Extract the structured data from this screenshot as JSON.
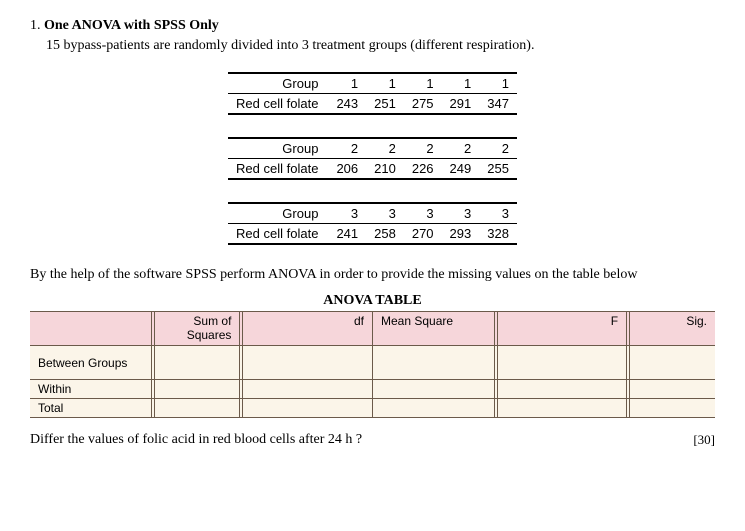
{
  "question": {
    "number": "1.",
    "title": "One ANOVA with SPSS Only",
    "intro": "15 bypass-patients are randomly divided into 3 treatment groups (different respiration).",
    "prompt": "By the help of the software SPSS perform ANOVA in order to provide the missing values on the table below",
    "final": "Differ the values of folic acid in red blood cells after 24 h ?",
    "marks": "[30]"
  },
  "dataTables": [
    {
      "rows": [
        {
          "label": "Group",
          "values": [
            "1",
            "1",
            "1",
            "1",
            "1"
          ]
        },
        {
          "label": "Red cell folate",
          "values": [
            "243",
            "251",
            "275",
            "291",
            "347"
          ]
        }
      ]
    },
    {
      "rows": [
        {
          "label": "Group",
          "values": [
            "2",
            "2",
            "2",
            "2",
            "2"
          ]
        },
        {
          "label": "Red cell folate",
          "values": [
            "206",
            "210",
            "226",
            "249",
            "255"
          ]
        }
      ]
    },
    {
      "rows": [
        {
          "label": "Group",
          "values": [
            "3",
            "3",
            "3",
            "3",
            "3"
          ]
        },
        {
          "label": "Red cell folate",
          "values": [
            "241",
            "258",
            "270",
            "293",
            "328"
          ]
        }
      ]
    }
  ],
  "anova": {
    "title": "ANOVA TABLE",
    "headers": [
      "",
      "Sum of Squares",
      "df",
      "Mean Square",
      "F",
      "Sig."
    ],
    "rows": [
      {
        "label": "Between Groups"
      },
      {
        "label": "Within"
      },
      {
        "label": "Total"
      }
    ]
  }
}
